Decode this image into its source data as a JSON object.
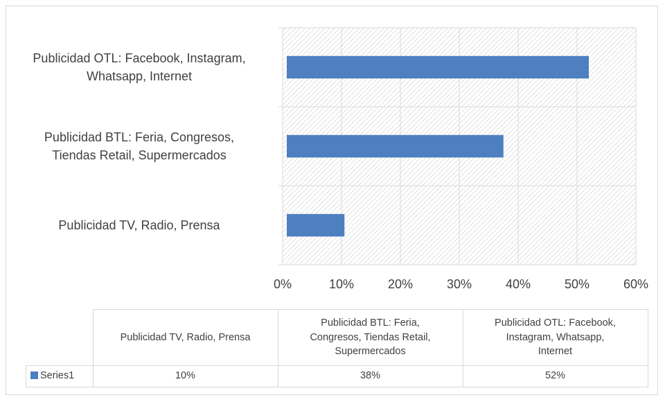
{
  "chart_data": {
    "type": "bar",
    "orientation": "horizontal",
    "title": "",
    "xlabel": "",
    "ylabel": "",
    "categories": [
      "Publicidad TV, Radio, Prensa",
      "Publicidad BTL: Feria, Congresos, Tiendas Retail, Supermercados",
      "Publicidad OTL: Facebook, Instagram, Whatsapp, Internet"
    ],
    "category_axis_lines": [
      [
        "Publicidad TV, Radio, Prensa"
      ],
      [
        "Publicidad BTL: Feria, Congresos,",
        "Tiendas Retail, Supermercados"
      ],
      [
        "Publicidad OTL: Facebook, Instagram,",
        "Whatsapp, Internet"
      ]
    ],
    "series": [
      {
        "name": "Series1",
        "values": [
          0.105,
          0.375,
          0.52
        ],
        "color": "#4e7fc0"
      }
    ],
    "xlim": [
      0,
      0.6
    ],
    "x_ticks": [
      "0%",
      "10%",
      "20%",
      "30%",
      "40%",
      "50%",
      "60%"
    ],
    "grid": true,
    "plot_background": "diagonal-hatch",
    "legend": "data-table"
  },
  "data_table": {
    "header_lines": [
      [
        "Publicidad TV, Radio, Prensa"
      ],
      [
        "Publicidad BTL: Feria,",
        "Congresos, Tiendas Retail,",
        "Supermercados"
      ],
      [
        "Publicidad OTL: Facebook,",
        "Instagram, Whatsapp,",
        "Internet"
      ]
    ],
    "series_label": "Series1",
    "values": [
      "10%",
      "38%",
      "52%"
    ]
  }
}
